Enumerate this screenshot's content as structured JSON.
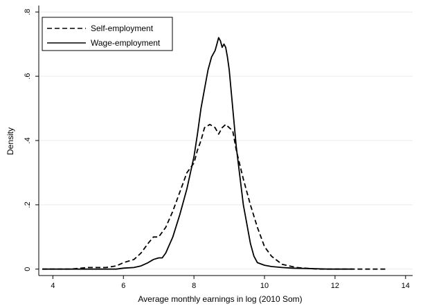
{
  "chart_data": {
    "type": "line",
    "xlabel": "Average monthly earnings in log (2010 Som)",
    "ylabel": "Density",
    "xlim": [
      3.6,
      14.2
    ],
    "ylim": [
      -0.02,
      0.82
    ],
    "xticks": [
      4,
      6,
      8,
      10,
      12,
      14
    ],
    "yticks": [
      0,
      0.2,
      0.4,
      0.6,
      0.8
    ],
    "xtick_labels": [
      "4",
      "6",
      "8",
      "10",
      "12",
      "14"
    ],
    "ytick_labels": [
      "0",
      ".2",
      ".4",
      ".6",
      ".8"
    ],
    "grid": "horizontal",
    "legend_position": "top-left",
    "series": [
      {
        "name": "Self-employment",
        "style": "dashed",
        "color": "#000000",
        "x": [
          3.7,
          4.5,
          5.0,
          5.5,
          5.8,
          6.0,
          6.3,
          6.5,
          6.7,
          6.85,
          7.0,
          7.2,
          7.4,
          7.6,
          7.8,
          8.0,
          8.1,
          8.2,
          8.3,
          8.45,
          8.6,
          8.7,
          8.8,
          8.9,
          9.0,
          9.1,
          9.2,
          9.4,
          9.6,
          9.8,
          10.0,
          10.2,
          10.5,
          10.9,
          11.5,
          12.0,
          13.0,
          13.5
        ],
        "y": [
          0.0,
          0.0,
          0.005,
          0.005,
          0.01,
          0.02,
          0.03,
          0.05,
          0.08,
          0.1,
          0.1,
          0.13,
          0.18,
          0.24,
          0.3,
          0.33,
          0.37,
          0.4,
          0.44,
          0.45,
          0.44,
          0.42,
          0.44,
          0.45,
          0.44,
          0.43,
          0.37,
          0.28,
          0.2,
          0.13,
          0.07,
          0.04,
          0.015,
          0.005,
          0.0,
          0.0,
          0.0,
          0.0
        ]
      },
      {
        "name": "Wage-employment",
        "style": "solid",
        "color": "#000000",
        "x": [
          3.7,
          5.0,
          5.8,
          6.0,
          6.3,
          6.5,
          6.7,
          6.85,
          7.0,
          7.1,
          7.2,
          7.4,
          7.6,
          7.8,
          8.0,
          8.1,
          8.2,
          8.3,
          8.4,
          8.5,
          8.55,
          8.6,
          8.65,
          8.7,
          8.75,
          8.8,
          8.85,
          8.9,
          8.95,
          9.0,
          9.1,
          9.2,
          9.4,
          9.6,
          9.7,
          9.8,
          10.0,
          10.2,
          10.5,
          10.8,
          11.2,
          11.8,
          12.5
        ],
        "y": [
          0.0,
          0.0,
          0.0,
          0.003,
          0.005,
          0.01,
          0.02,
          0.03,
          0.035,
          0.035,
          0.05,
          0.1,
          0.17,
          0.25,
          0.35,
          0.42,
          0.5,
          0.56,
          0.62,
          0.66,
          0.67,
          0.68,
          0.7,
          0.72,
          0.71,
          0.69,
          0.7,
          0.69,
          0.66,
          0.62,
          0.5,
          0.38,
          0.2,
          0.08,
          0.04,
          0.02,
          0.012,
          0.008,
          0.005,
          0.003,
          0.002,
          0.0,
          0.0
        ]
      }
    ]
  }
}
